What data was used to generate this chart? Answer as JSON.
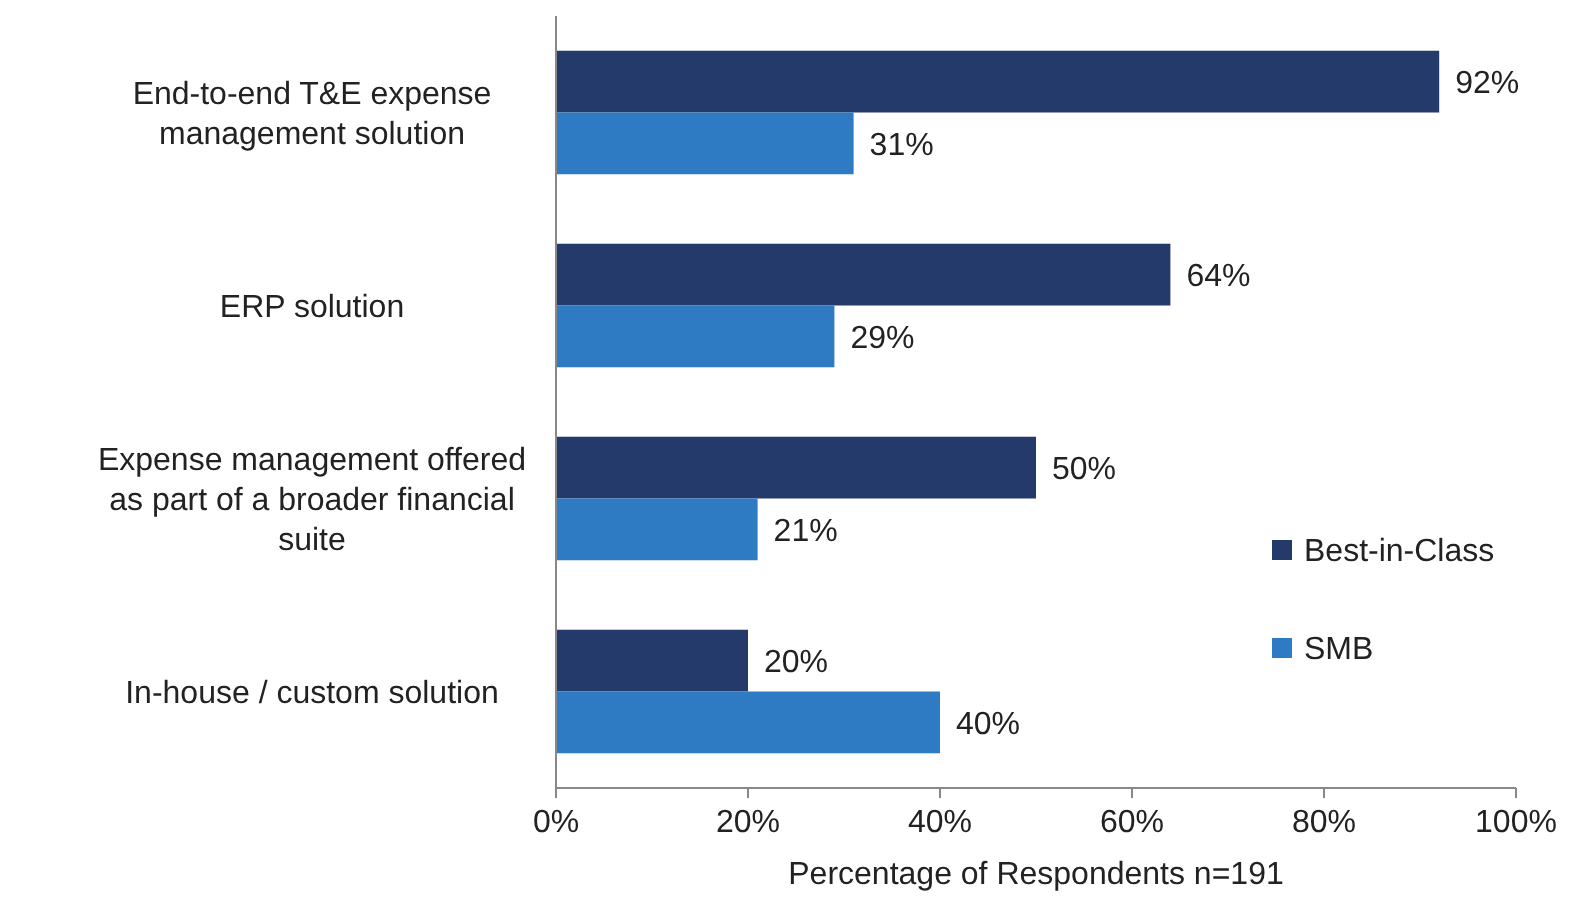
{
  "chart_data": {
    "type": "bar",
    "orientation": "horizontal",
    "categories": [
      "End-to-end T&E expense management solution",
      "ERP solution",
      "Expense management offered as part of a broader financial suite",
      "In-house / custom solution"
    ],
    "series": [
      {
        "name": "Best-in-Class",
        "color": "#243a6b",
        "values": [
          92,
          64,
          50,
          20
        ],
        "value_labels": [
          "92%",
          "64%",
          "50%",
          "20%"
        ]
      },
      {
        "name": "SMB",
        "color": "#2e7bc4",
        "values": [
          31,
          29,
          21,
          40
        ],
        "value_labels": [
          "31%",
          "29%",
          "21%",
          "40%"
        ]
      }
    ],
    "xlabel": "Percentage of Respondents  n=191",
    "xlim": [
      0,
      100
    ],
    "xticks": [
      {
        "value": 0,
        "label": "0%"
      },
      {
        "value": 20,
        "label": "20%"
      },
      {
        "value": 40,
        "label": "40%"
      },
      {
        "value": 60,
        "label": "60%"
      },
      {
        "value": 80,
        "label": "80%"
      },
      {
        "value": 100,
        "label": "100%"
      }
    ],
    "legend": "right",
    "grid": false
  }
}
